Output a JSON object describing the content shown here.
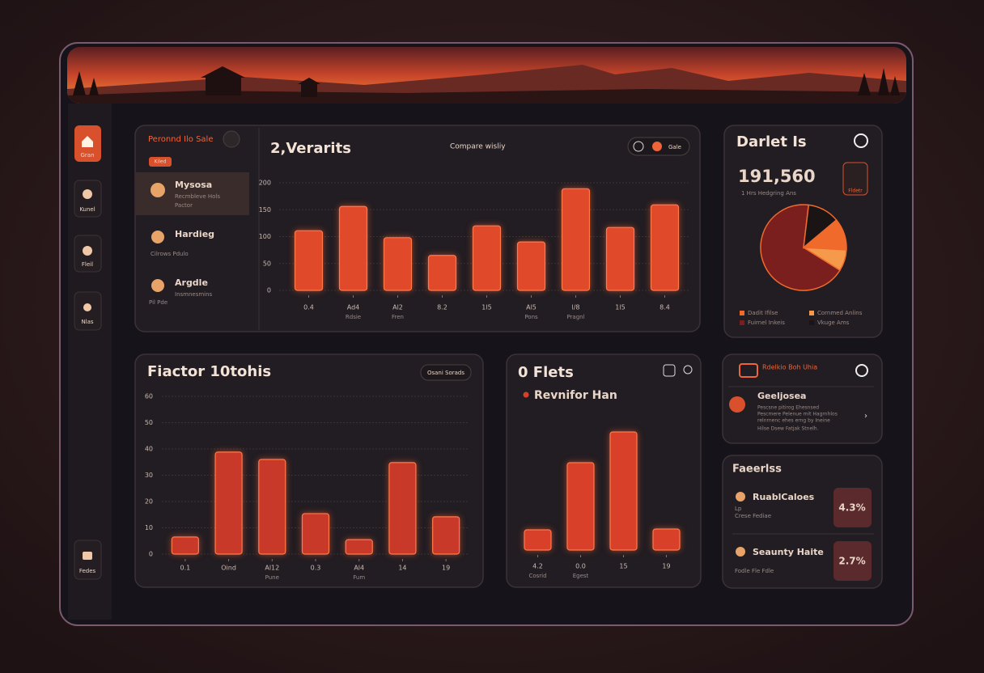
{
  "sidebar": {
    "items": [
      "Gran",
      "Kunel",
      "Fleil",
      "Nlas",
      "Fedes"
    ]
  },
  "list_panel": {
    "title": "Peronnd Ilo Sale",
    "badge": "Kiled",
    "items": [
      {
        "name": "Mysosa",
        "lines": [
          "Recmbleve Hols",
          "Pactor"
        ]
      },
      {
        "name": "Hardieg",
        "lines": [
          "Cilrows Pdulo"
        ]
      },
      {
        "name": "Argdle",
        "lines": [
          "Insmnesmins",
          "Pil Pde"
        ]
      }
    ]
  },
  "chart_data": [
    {
      "type": "bar",
      "title": "2,Verarits",
      "subtitle": "Compare wisliy",
      "toggle": "Gale",
      "categories": [
        "0.4",
        "Ad4",
        "Al2",
        "8.2",
        "1l5",
        "Al5",
        "l/8",
        "1l5",
        "8.4"
      ],
      "sublabels": [
        null,
        "Rdsie",
        "Fren",
        null,
        null,
        "Pons",
        "Pragnl",
        null,
        null
      ],
      "values": [
        111,
        156,
        98,
        65,
        120,
        90,
        189,
        117,
        159
      ],
      "color": "#e0492a",
      "ylim": [
        0,
        200
      ],
      "yticks": [
        0,
        50,
        100,
        150,
        200
      ],
      "grid": true
    },
    {
      "type": "bar",
      "title": "Fiactor 10tohis",
      "button": "Osani Sorads",
      "categories": [
        "0.1",
        "Oind",
        "Al12",
        "0.3",
        "Al4",
        "14",
        "19"
      ],
      "sublabels": [
        null,
        null,
        "Pune",
        null,
        "Fum",
        null,
        null
      ],
      "values": [
        6.5,
        38.8,
        36,
        15.4,
        5.5,
        34.8,
        14.2
      ],
      "color": "#c8392a",
      "ylim": [
        0,
        60
      ],
      "yticks": [
        0,
        10,
        20,
        30,
        40,
        50,
        60
      ],
      "grid": true
    },
    {
      "type": "bar",
      "title": "0 Flets",
      "categories": [
        "4.2",
        "0.0",
        "15",
        "19"
      ],
      "sublabels": [
        "Cosrid",
        "Egest",
        null,
        null
      ],
      "series": [
        {
          "name": "Revnifor Han",
          "color": "#d8402a",
          "values": [
            25,
            108,
            146,
            26
          ]
        }
      ],
      "ylim": [
        0,
        160
      ],
      "grid": false
    },
    {
      "type": "pie",
      "title": "Darlet Is",
      "headline": "191,560",
      "subtitle": "1 Hrs Hedgring Ans",
      "badge": "Fldetr",
      "categories": [
        "Dadit Ifilse",
        "Cornmed Anlins",
        "Fuirnel Inkeis",
        "Vkuge Ams"
      ],
      "values": [
        12,
        8,
        68,
        12
      ],
      "colors": [
        "#f06a2c",
        "#f59a4a",
        "#7a1e1e",
        "#1a1414"
      ]
    }
  ],
  "alert_panel": {
    "title": "Rdelkio Boh Uhia",
    "item": "Geeljosea",
    "lines": [
      "Pescsne pitirog Ehesnsed",
      "Pescmere Pelenue mit Hagrnhlos",
      "relnrnenc ehes erng by Ineine",
      "Hilse Dsew Fatjak Stnelh."
    ]
  },
  "factors_panel": {
    "title": "Faeerlss",
    "rows": [
      {
        "name": "RuablCaloes",
        "sub": [
          "Lp",
          "Crese Fediae"
        ],
        "value": "4.3%"
      },
      {
        "name": "Seaunty Haite",
        "sub": [
          "Fodle Fle Fdle"
        ],
        "value": "2.7%"
      }
    ]
  }
}
